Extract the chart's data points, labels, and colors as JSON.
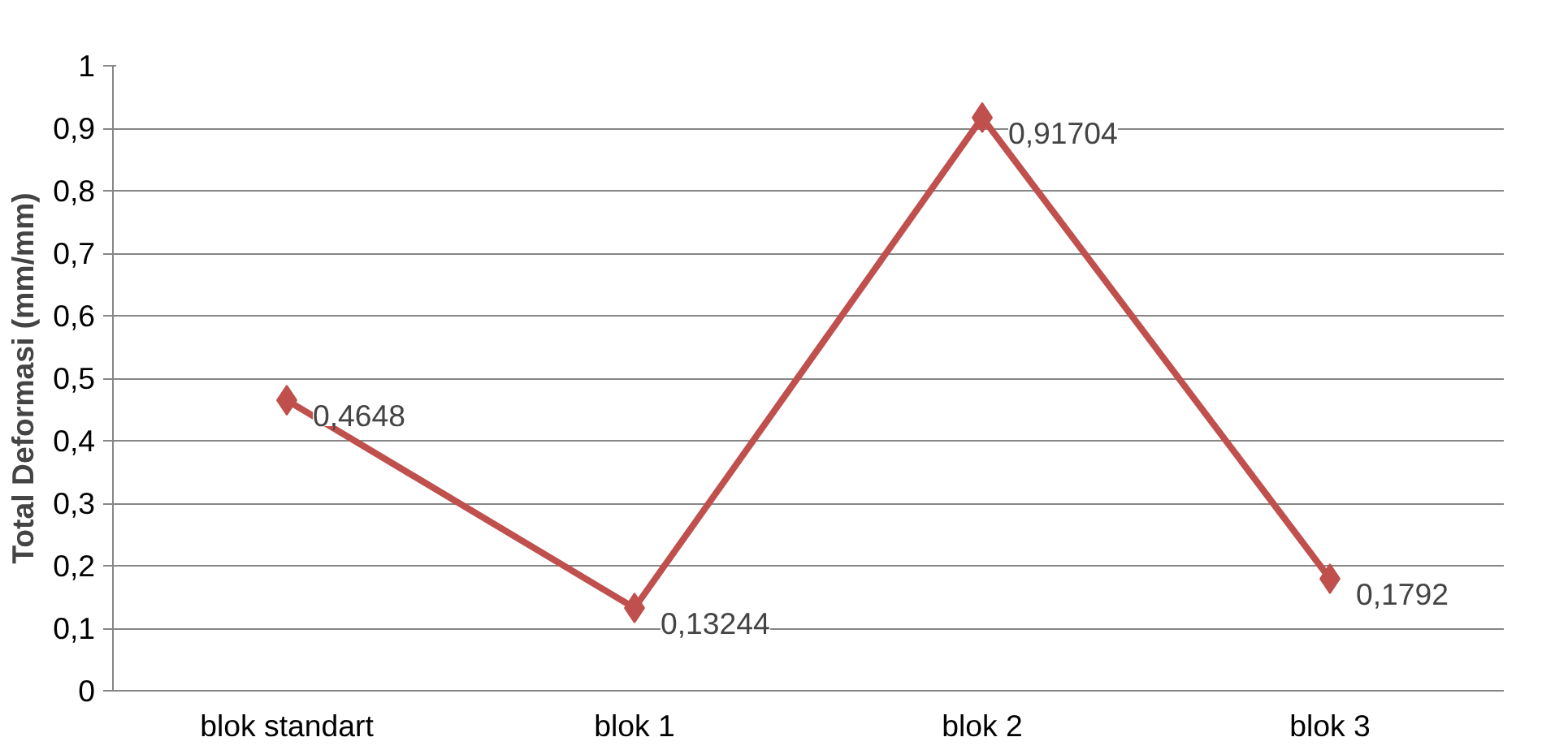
{
  "chart_data": {
    "type": "line",
    "ylabel": "Total Deformasi (mm/mm)",
    "categories": [
      "blok standart",
      "blok 1",
      "blok 2",
      "blok 3"
    ],
    "values": [
      0.4648,
      0.13244,
      0.91704,
      0.1792
    ],
    "value_labels": [
      "0,4648",
      "0,13244",
      "0,91704",
      "0,1792"
    ],
    "color": "#c0504d",
    "marker": "diamond",
    "line_style": "solid",
    "grid": "y",
    "ylim": [
      0,
      1
    ],
    "yticks": [
      0,
      {
        "value": 0.1,
        "label": "0,1"
      },
      {
        "value": 0.2,
        "label": "0,2"
      },
      {
        "value": 0.3,
        "label": "0,3"
      },
      {
        "value": 0.4,
        "label": "0,4"
      },
      {
        "value": 0.5,
        "label": "0,5"
      },
      {
        "value": 0.6,
        "label": "0,6"
      },
      {
        "value": 0.7,
        "label": "0,7"
      },
      {
        "value": 0.8,
        "label": "0,8"
      },
      {
        "value": 0.9,
        "label": "0,9"
      },
      1
    ]
  }
}
